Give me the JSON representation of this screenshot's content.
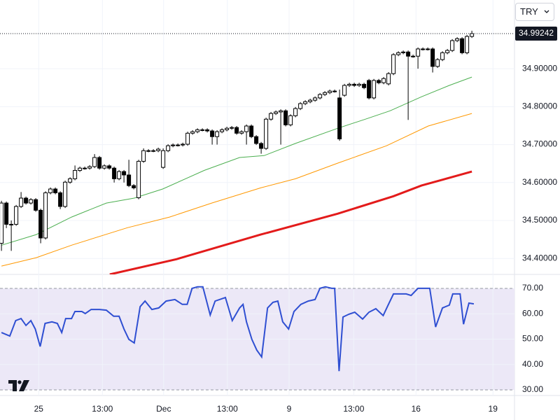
{
  "ui": {
    "currency": "TRY"
  },
  "chart_data": [
    {
      "type": "candlestick",
      "open": [
        34.44,
        34.546,
        34.49,
        34.49,
        34.537,
        34.559,
        34.546,
        34.555,
        34.527,
        34.454,
        34.573,
        34.583,
        34.573,
        34.537,
        34.601,
        34.61,
        34.632,
        34.638,
        34.638,
        34.642,
        34.666,
        34.638,
        34.644,
        34.638,
        34.61,
        34.629,
        34.62,
        34.592,
        34.56,
        34.656,
        34.684,
        34.684,
        34.684,
        34.64,
        34.684,
        34.697,
        34.699,
        34.699,
        34.701,
        34.73,
        34.734,
        34.739,
        34.739,
        34.736,
        34.721,
        34.734,
        34.739,
        34.743,
        34.745,
        34.73,
        34.734,
        34.749,
        34.721,
        34.703,
        34.69,
        34.767,
        34.782,
        34.786,
        34.789,
        34.752,
        34.776,
        34.795,
        34.808,
        34.813,
        34.817,
        34.823,
        34.832,
        34.837,
        34.841,
        34.823,
        34.83,
        34.856,
        34.859,
        34.856,
        34.859,
        34.869,
        34.823,
        34.869,
        34.863,
        34.86,
        34.887,
        34.937,
        34.942,
        34.944,
        34.933,
        34.933,
        34.952,
        34.952,
        34.952,
        34.906,
        34.924,
        34.942,
        34.948,
        34.974,
        34.979,
        34.942,
        34.985
      ],
      "high": [
        34.552,
        34.55,
        34.5,
        34.541,
        34.575,
        34.563,
        34.559,
        34.559,
        34.531,
        34.577,
        34.587,
        34.587,
        34.577,
        34.605,
        34.614,
        34.645,
        34.642,
        34.642,
        34.646,
        34.675,
        34.67,
        34.648,
        34.648,
        34.642,
        34.633,
        34.633,
        34.66,
        34.596,
        34.66,
        34.69,
        34.688,
        34.688,
        34.692,
        34.69,
        34.701,
        34.703,
        34.703,
        34.705,
        34.734,
        34.738,
        34.743,
        34.743,
        34.743,
        34.74,
        34.738,
        34.743,
        34.747,
        34.749,
        34.749,
        34.738,
        34.753,
        34.753,
        34.725,
        34.707,
        34.771,
        34.786,
        34.79,
        34.793,
        34.793,
        34.78,
        34.799,
        34.812,
        34.817,
        34.821,
        34.827,
        34.836,
        34.841,
        34.845,
        34.845,
        34.845,
        34.86,
        34.863,
        34.863,
        34.863,
        34.863,
        34.873,
        34.873,
        34.873,
        34.878,
        34.891,
        34.941,
        34.946,
        34.948,
        34.948,
        34.937,
        34.956,
        34.956,
        34.956,
        34.956,
        34.928,
        34.946,
        34.952,
        34.978,
        34.983,
        34.983,
        34.989,
        35.0
      ],
      "low": [
        34.42,
        34.48,
        34.42,
        34.486,
        34.533,
        34.542,
        34.542,
        34.523,
        34.44,
        34.45,
        34.569,
        34.569,
        34.53,
        34.533,
        34.597,
        34.606,
        34.628,
        34.634,
        34.634,
        34.638,
        34.634,
        34.634,
        34.634,
        34.6,
        34.606,
        34.6,
        34.588,
        34.582,
        34.556,
        34.652,
        34.68,
        34.68,
        34.68,
        34.636,
        34.68,
        34.693,
        34.695,
        34.695,
        34.697,
        34.726,
        34.73,
        34.735,
        34.732,
        34.7,
        34.7,
        34.73,
        34.735,
        34.739,
        34.726,
        34.726,
        34.7,
        34.717,
        34.699,
        34.676,
        34.686,
        34.763,
        34.778,
        34.7,
        34.748,
        34.748,
        34.772,
        34.791,
        34.804,
        34.809,
        34.813,
        34.819,
        34.828,
        34.833,
        34.837,
        34.71,
        34.826,
        34.852,
        34.852,
        34.852,
        34.846,
        34.819,
        34.819,
        34.859,
        34.859,
        34.856,
        34.883,
        34.933,
        34.938,
        34.765,
        34.929,
        34.9,
        34.948,
        34.948,
        34.89,
        34.902,
        34.92,
        34.938,
        34.944,
        34.97,
        34.938,
        34.938,
        34.981
      ],
      "close": [
        34.546,
        34.49,
        34.49,
        34.537,
        34.559,
        34.546,
        34.555,
        34.527,
        34.454,
        34.573,
        34.583,
        34.573,
        34.537,
        34.601,
        34.61,
        34.632,
        34.638,
        34.638,
        34.642,
        34.666,
        34.638,
        34.644,
        34.638,
        34.61,
        34.629,
        34.62,
        34.592,
        34.586,
        34.656,
        34.684,
        34.684,
        34.684,
        34.688,
        34.684,
        34.697,
        34.699,
        34.699,
        34.701,
        34.73,
        34.734,
        34.739,
        34.739,
        34.736,
        34.721,
        34.734,
        34.739,
        34.743,
        34.745,
        34.73,
        34.734,
        34.749,
        34.721,
        34.703,
        34.69,
        34.767,
        34.782,
        34.786,
        34.789,
        34.752,
        34.776,
        34.795,
        34.808,
        34.813,
        34.817,
        34.823,
        34.832,
        34.837,
        34.841,
        34.841,
        34.715,
        34.856,
        34.859,
        34.856,
        34.859,
        34.85,
        34.823,
        34.869,
        34.863,
        34.874,
        34.887,
        34.937,
        34.942,
        34.944,
        34.933,
        34.933,
        34.952,
        34.952,
        34.952,
        34.906,
        34.924,
        34.942,
        34.948,
        34.974,
        34.979,
        34.942,
        34.985,
        34.99242
      ],
      "colors": {
        "up": "#ffffff",
        "down": "#000000",
        "border": "#000000"
      },
      "overlays": [
        {
          "color": "#4caf50",
          "width": 1,
          "x": [
            0,
            7.1,
            14.3,
            21.4,
            27.1,
            32.9,
            41.4,
            48.6,
            53.6,
            60,
            68.6,
            74.3,
            79.3,
            85.7,
            91.4,
            96
          ],
          "values": [
            34.435,
            34.463,
            34.509,
            34.546,
            34.559,
            34.583,
            34.632,
            34.666,
            34.671,
            34.703,
            34.743,
            34.767,
            34.789,
            34.826,
            34.856,
            34.878
          ]
        },
        {
          "color": "#ff9800",
          "width": 1,
          "x": [
            0,
            7.1,
            14.3,
            25.7,
            34.3,
            42.9,
            52.9,
            60,
            68.6,
            78.6,
            87.1,
            96
          ],
          "values": [
            34.38,
            34.402,
            34.435,
            34.481,
            34.509,
            34.546,
            34.586,
            34.61,
            34.651,
            34.697,
            34.749,
            34.782
          ]
        },
        {
          "color": "#e31b1b",
          "width": 3,
          "x": [
            22.1,
            35.7,
            52.9,
            68.6,
            80,
            85.7,
            96
          ],
          "values": [
            34.358,
            34.398,
            34.463,
            34.518,
            34.564,
            34.592,
            34.629
          ]
        }
      ],
      "last_price": 34.99242,
      "xlim": [
        -0.3,
        104.7
      ],
      "xticks": [
        {
          "value": 7.6,
          "label": "25"
        },
        {
          "value": 20.6,
          "label": "13:00"
        },
        {
          "value": 33.1,
          "label": "Dec"
        },
        {
          "value": 46.1,
          "label": "13:00"
        },
        {
          "value": 58.7,
          "label": "9"
        },
        {
          "value": 71.9,
          "label": "13:00"
        },
        {
          "value": 84.6,
          "label": "16"
        },
        {
          "value": 100.3,
          "label": "19"
        }
      ],
      "ylim": [
        34.358,
        35.081
      ],
      "yticks": [
        {
          "value": 34.4,
          "label": "34.40000"
        },
        {
          "value": 34.5,
          "label": "34.50000"
        },
        {
          "value": 34.6,
          "label": "34.60000"
        },
        {
          "value": 34.7,
          "label": "34.70000"
        },
        {
          "value": 34.8,
          "label": "34.80000"
        },
        {
          "value": 34.9,
          "label": "34.90000"
        }
      ],
      "grid": true
    },
    {
      "type": "line",
      "x": [
        0,
        1.7,
        2.9,
        4,
        5,
        6,
        6.9,
        7.9,
        8.9,
        10.3,
        11.4,
        12.3,
        13.1,
        14.3,
        15,
        16.4,
        17.1,
        18.3,
        20,
        21.4,
        22.9,
        24,
        25,
        26,
        27.1,
        28.3,
        29.3,
        30.7,
        32.1,
        33.6,
        35.4,
        36.9,
        37.9,
        38.9,
        40,
        41.1,
        42.6,
        43.6,
        45.7,
        47.1,
        48.6,
        49.3,
        50,
        51.1,
        52.1,
        53.1,
        54.3,
        55.4,
        56.4,
        57.4,
        58.6,
        59.7,
        61.1,
        62.6,
        64,
        65,
        66.1,
        67.4,
        68,
        68.9,
        69.7,
        70.9,
        72.1,
        73.7,
        75,
        76.4,
        77.9,
        78.9,
        80,
        81.4,
        82.6,
        83.6,
        85,
        86.4,
        87.4,
        88.6,
        90,
        91.4,
        92.1,
        93.6,
        94.3,
        95.4,
        96.4
      ],
      "values": [
        52.6,
        51.2,
        57.3,
        58.1,
        55.4,
        57.3,
        54.0,
        47.1,
        56.2,
        56.8,
        56.2,
        52.6,
        58.1,
        58.1,
        60.9,
        60.9,
        60.1,
        61.7,
        61.7,
        61.4,
        59.0,
        59.0,
        54.0,
        49.9,
        48.5,
        62.8,
        65.0,
        61.7,
        62.3,
        65.0,
        65.6,
        63.7,
        63.7,
        70.0,
        70.6,
        70.6,
        59.5,
        65.0,
        66.4,
        57.3,
        62.3,
        63.7,
        56.8,
        49.9,
        45.7,
        43.0,
        62.3,
        64.5,
        65.0,
        56.8,
        54.0,
        60.9,
        63.7,
        65.0,
        65.6,
        70.0,
        70.6,
        70.0,
        70.0,
        37.4,
        58.7,
        59.8,
        60.6,
        57.9,
        60.6,
        62.0,
        59.3,
        63.4,
        67.8,
        67.8,
        67.8,
        67.2,
        70.0,
        70.0,
        70.0,
        54.8,
        62.3,
        63.4,
        67.8,
        67.8,
        55.9,
        64.2,
        63.9
      ],
      "color": "#2f4fd2",
      "band": [
        30,
        70
      ],
      "band_color": "#ece8f7",
      "ylim": [
        27.8,
        75.5
      ],
      "yticks": [
        {
          "value": 30,
          "label": "30.00"
        },
        {
          "value": 40,
          "label": "40.00"
        },
        {
          "value": 50,
          "label": "50.00"
        },
        {
          "value": 60,
          "label": "60.00"
        },
        {
          "value": 70,
          "label": "70.00"
        }
      ],
      "grid": true
    }
  ]
}
